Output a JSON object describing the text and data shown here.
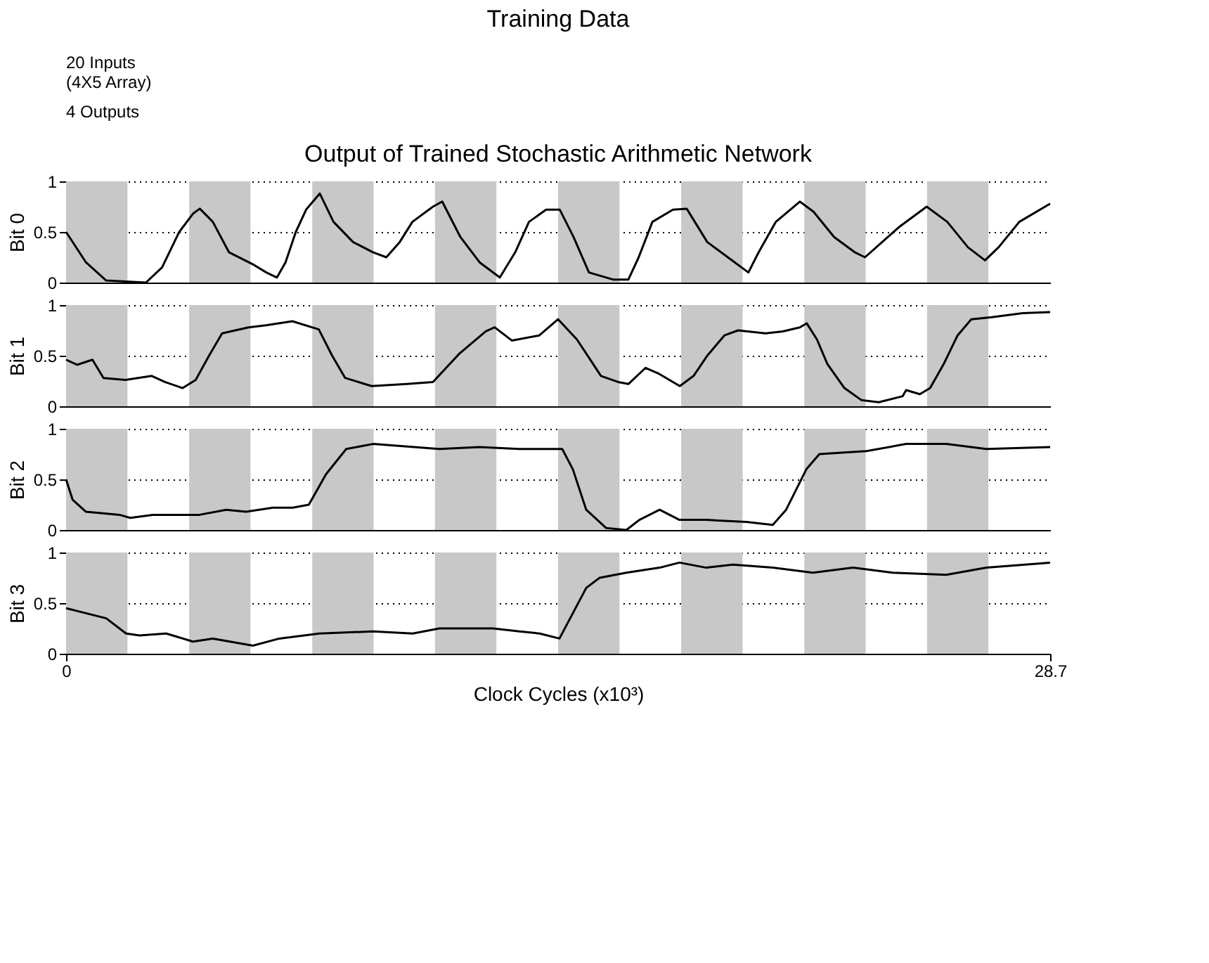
{
  "chart_data": [
    {
      "type": "other",
      "title": "Training Data",
      "annotations": [
        "20 Inputs\n(4X5 Array)",
        "4 Outputs"
      ]
    },
    {
      "type": "line",
      "title": "Output of Trained Stochastic Arithmetic Network",
      "ylabel": "Bit 0",
      "xlim": [
        0,
        28.7
      ],
      "ylim": [
        0,
        1
      ],
      "yticks": [
        0,
        0.5,
        1
      ],
      "grid": "y",
      "tick_labels": "y",
      "line_style": "solid",
      "bands": [
        {
          "axis": "x",
          "from": 0,
          "to": 1.79,
          "color": "#c8c8c8"
        },
        {
          "axis": "x",
          "from": 3.59,
          "to": 5.38,
          "color": "#c8c8c8"
        },
        {
          "axis": "x",
          "from": 7.18,
          "to": 8.97,
          "color": "#c8c8c8"
        },
        {
          "axis": "x",
          "from": 10.76,
          "to": 12.55,
          "color": "#c8c8c8"
        },
        {
          "axis": "x",
          "from": 14.35,
          "to": 16.14,
          "color": "#c8c8c8"
        },
        {
          "axis": "x",
          "from": 17.94,
          "to": 19.73,
          "color": "#c8c8c8"
        },
        {
          "axis": "x",
          "from": 21.53,
          "to": 23.32,
          "color": "#c8c8c8"
        },
        {
          "axis": "x",
          "from": 25.11,
          "to": 26.9,
          "color": "#c8c8c8"
        }
      ],
      "series": [
        {
          "color": "#000000",
          "x": [
            0,
            0.58,
            1.17,
            2.33,
            2.8,
            3.3,
            3.7,
            3.9,
            4.28,
            4.75,
            5.45,
            5.84,
            6.15,
            6.4,
            6.7,
            7.0,
            7.4,
            7.8,
            8.37,
            8.95,
            9.34,
            9.73,
            10.1,
            10.7,
            10.97,
            11.5,
            12.06,
            12.65,
            13.1,
            13.5,
            14.0,
            14.4,
            14.8,
            15.25,
            15.95,
            16.4,
            16.7,
            17.1,
            17.7,
            18.1,
            18.7,
            19.3,
            19.9,
            20.2,
            20.7,
            21.4,
            21.8,
            22.4,
            23.0,
            23.3,
            23.8,
            24.3,
            25.1,
            25.7,
            26.3,
            26.8,
            27.2,
            27.8,
            28.7
          ],
          "values": [
            0.5,
            0.2,
            0.02,
            0.0,
            0.15,
            0.5,
            0.68,
            0.73,
            0.6,
            0.3,
            0.18,
            0.1,
            0.05,
            0.2,
            0.5,
            0.72,
            0.88,
            0.6,
            0.4,
            0.3,
            0.25,
            0.4,
            0.6,
            0.75,
            0.8,
            0.45,
            0.2,
            0.05,
            0.3,
            0.6,
            0.72,
            0.72,
            0.45,
            0.1,
            0.03,
            0.03,
            0.25,
            0.6,
            0.72,
            0.73,
            0.4,
            0.25,
            0.1,
            0.3,
            0.6,
            0.8,
            0.7,
            0.45,
            0.3,
            0.25,
            0.4,
            0.55,
            0.75,
            0.6,
            0.35,
            0.22,
            0.35,
            0.6,
            0.78
          ]
        }
      ]
    },
    {
      "type": "line",
      "ylabel": "Bit 1",
      "xlim": [
        0,
        28.7
      ],
      "ylim": [
        0,
        1
      ],
      "yticks": [
        0,
        0.5,
        1
      ],
      "grid": "y",
      "tick_labels": "y",
      "line_style": "solid",
      "bands": [
        {
          "axis": "x",
          "from": 0,
          "to": 1.79,
          "color": "#c8c8c8"
        },
        {
          "axis": "x",
          "from": 3.59,
          "to": 5.38,
          "color": "#c8c8c8"
        },
        {
          "axis": "x",
          "from": 7.18,
          "to": 8.97,
          "color": "#c8c8c8"
        },
        {
          "axis": "x",
          "from": 10.76,
          "to": 12.55,
          "color": "#c8c8c8"
        },
        {
          "axis": "x",
          "from": 14.35,
          "to": 16.14,
          "color": "#c8c8c8"
        },
        {
          "axis": "x",
          "from": 17.94,
          "to": 19.73,
          "color": "#c8c8c8"
        },
        {
          "axis": "x",
          "from": 21.53,
          "to": 23.32,
          "color": "#c8c8c8"
        },
        {
          "axis": "x",
          "from": 25.11,
          "to": 26.9,
          "color": "#c8c8c8"
        }
      ],
      "series": [
        {
          "color": "#000000",
          "x": [
            0,
            0.32,
            0.77,
            1.09,
            1.73,
            2.5,
            2.88,
            3.4,
            3.78,
            4.17,
            4.55,
            5.32,
            5.83,
            6.6,
            7.37,
            7.76,
            8.14,
            8.91,
            9.94,
            10.7,
            11.47,
            12.24,
            12.5,
            13.0,
            13.8,
            14.35,
            14.9,
            15.6,
            16.1,
            16.4,
            16.9,
            17.3,
            17.9,
            18.3,
            18.7,
            19.2,
            19.6,
            20.4,
            20.9,
            21.4,
            21.6,
            21.9,
            22.2,
            22.7,
            23.2,
            23.7,
            24.4,
            24.5,
            24.9,
            25.2,
            25.6,
            26.0,
            26.4,
            27.0,
            27.9,
            28.7
          ],
          "values": [
            0.46,
            0.41,
            0.46,
            0.28,
            0.26,
            0.3,
            0.24,
            0.18,
            0.26,
            0.5,
            0.72,
            0.78,
            0.8,
            0.84,
            0.76,
            0.5,
            0.28,
            0.2,
            0.22,
            0.24,
            0.52,
            0.74,
            0.78,
            0.65,
            0.7,
            0.86,
            0.66,
            0.3,
            0.24,
            0.22,
            0.38,
            0.32,
            0.2,
            0.3,
            0.5,
            0.7,
            0.75,
            0.72,
            0.74,
            0.78,
            0.82,
            0.66,
            0.42,
            0.18,
            0.06,
            0.04,
            0.1,
            0.16,
            0.12,
            0.18,
            0.42,
            0.7,
            0.86,
            0.88,
            0.92,
            0.93
          ]
        }
      ]
    },
    {
      "type": "line",
      "ylabel": "Bit 2",
      "xlim": [
        0,
        28.7
      ],
      "ylim": [
        0,
        1
      ],
      "yticks": [
        0,
        0.5,
        1
      ],
      "grid": "y",
      "tick_labels": "y",
      "line_style": "solid",
      "bands": [
        {
          "axis": "x",
          "from": 0,
          "to": 1.79,
          "color": "#c8c8c8"
        },
        {
          "axis": "x",
          "from": 3.59,
          "to": 5.38,
          "color": "#c8c8c8"
        },
        {
          "axis": "x",
          "from": 7.18,
          "to": 8.97,
          "color": "#c8c8c8"
        },
        {
          "axis": "x",
          "from": 10.76,
          "to": 12.55,
          "color": "#c8c8c8"
        },
        {
          "axis": "x",
          "from": 14.35,
          "to": 16.14,
          "color": "#c8c8c8"
        },
        {
          "axis": "x",
          "from": 17.94,
          "to": 19.73,
          "color": "#c8c8c8"
        },
        {
          "axis": "x",
          "from": 21.53,
          "to": 23.32,
          "color": "#c8c8c8"
        },
        {
          "axis": "x",
          "from": 25.11,
          "to": 26.9,
          "color": "#c8c8c8"
        }
      ],
      "series": [
        {
          "color": "#000000",
          "x": [
            0,
            0.19,
            0.58,
            1.56,
            1.87,
            2.53,
            3.89,
            4.67,
            5.25,
            6.03,
            6.61,
            7.08,
            7.58,
            8.17,
            8.95,
            10.89,
            12.06,
            13.22,
            14.47,
            14.78,
            15.17,
            15.75,
            16.34,
            16.72,
            17.31,
            17.89,
            18.67,
            19.84,
            20.61,
            21.0,
            21.59,
            21.97,
            23.34,
            24.5,
            25.67,
            26.84,
            28.7
          ],
          "values": [
            0.5,
            0.3,
            0.18,
            0.15,
            0.12,
            0.15,
            0.15,
            0.2,
            0.18,
            0.22,
            0.22,
            0.25,
            0.55,
            0.8,
            0.85,
            0.8,
            0.82,
            0.8,
            0.8,
            0.6,
            0.2,
            0.02,
            0.0,
            0.1,
            0.2,
            0.1,
            0.1,
            0.08,
            0.05,
            0.2,
            0.6,
            0.75,
            0.78,
            0.85,
            0.85,
            0.8,
            0.82
          ]
        }
      ]
    },
    {
      "type": "line",
      "ylabel": "Bit 3",
      "xlabel": "Clock Cycles (x10³)",
      "xlim": [
        0,
        28.7
      ],
      "xticks": [
        0,
        28.7
      ],
      "ylim": [
        0,
        1
      ],
      "yticks": [
        0,
        0.5,
        1
      ],
      "grid": "y",
      "line_style": "solid",
      "bands": [
        {
          "axis": "x",
          "from": 0,
          "to": 1.79,
          "color": "#c8c8c8"
        },
        {
          "axis": "x",
          "from": 3.59,
          "to": 5.38,
          "color": "#c8c8c8"
        },
        {
          "axis": "x",
          "from": 7.18,
          "to": 8.97,
          "color": "#c8c8c8"
        },
        {
          "axis": "x",
          "from": 10.76,
          "to": 12.55,
          "color": "#c8c8c8"
        },
        {
          "axis": "x",
          "from": 14.35,
          "to": 16.14,
          "color": "#c8c8c8"
        },
        {
          "axis": "x",
          "from": 17.94,
          "to": 19.73,
          "color": "#c8c8c8"
        },
        {
          "axis": "x",
          "from": 21.53,
          "to": 23.32,
          "color": "#c8c8c8"
        },
        {
          "axis": "x",
          "from": 25.11,
          "to": 26.9,
          "color": "#c8c8c8"
        }
      ],
      "series": [
        {
          "color": "#000000",
          "x": [
            0,
            0.58,
            1.17,
            1.75,
            2.14,
            2.92,
            3.7,
            4.28,
            5.45,
            6.22,
            7.39,
            8.95,
            10.11,
            10.89,
            12.45,
            13.22,
            13.81,
            14.39,
            14.78,
            15.17,
            15.56,
            16.34,
            17.31,
            17.89,
            18.67,
            19.45,
            20.61,
            21.78,
            22.95,
            24.11,
            25.67,
            26.84,
            28.7
          ],
          "values": [
            0.45,
            0.4,
            0.35,
            0.2,
            0.18,
            0.2,
            0.12,
            0.15,
            0.08,
            0.15,
            0.2,
            0.22,
            0.2,
            0.25,
            0.25,
            0.22,
            0.2,
            0.15,
            0.4,
            0.65,
            0.75,
            0.8,
            0.85,
            0.9,
            0.85,
            0.88,
            0.85,
            0.8,
            0.85,
            0.8,
            0.78,
            0.85,
            0.9
          ]
        }
      ]
    }
  ]
}
